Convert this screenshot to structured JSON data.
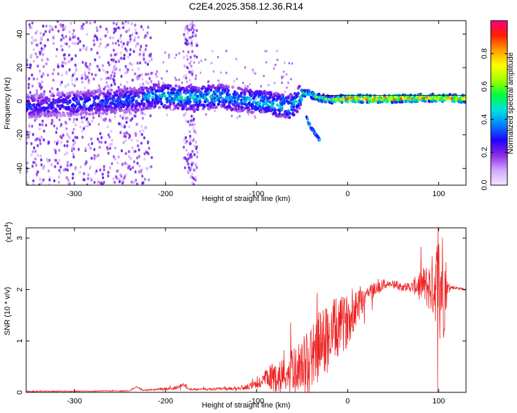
{
  "figure_title": "C2E4.2025.358.12.36.R14",
  "chart_data": [
    {
      "type": "heatmap",
      "title": "C2E4.2025.358.12.36.R14",
      "xlabel": "Height of straight line (km)",
      "ylabel": "Frequency (Hz)",
      "xlim": [
        -353,
        130
      ],
      "ylim": [
        -50,
        48
      ],
      "x_ticks": [
        -300,
        -200,
        -100,
        0,
        100
      ],
      "y_ticks": [
        -40,
        -20,
        0,
        20,
        40
      ],
      "x_tick_labels": [
        "-300",
        "-200",
        "-100",
        "0",
        "100"
      ],
      "y_tick_labels": [
        "-40",
        "-20",
        "0",
        "20",
        "40"
      ],
      "colorbar": {
        "label": "Normalized spectral amplitude",
        "range": [
          0,
          1
        ],
        "ticks": [
          0.0,
          0.2,
          0.4,
          0.6,
          0.8
        ],
        "tick_labels": [
          "0.0",
          "0.2",
          "0.4",
          "0.6",
          "0.8"
        ],
        "stops": [
          "#f2e6ff",
          "#d0a8ff",
          "#8a2be2",
          "#2200ff",
          "#0080ff",
          "#00e0e0",
          "#00ff40",
          "#a0ff00",
          "#ffff00",
          "#ffa000",
          "#ff2000",
          "#ff0080"
        ]
      },
      "ridge": {
        "x": [
          -350,
          -320,
          -290,
          -260,
          -230,
          -215,
          -200,
          -180,
          -160,
          -140,
          -120,
          -100,
          -80,
          -60,
          -50,
          -40,
          -30,
          -20,
          0,
          20,
          50,
          80,
          100,
          130
        ],
        "freq": [
          -3,
          -2,
          -1,
          0,
          1,
          3,
          3,
          2,
          2,
          3,
          1,
          0,
          -2,
          -3,
          5,
          4,
          2,
          1,
          1.5,
          1.5,
          1.5,
          2,
          2,
          1.5
        ],
        "amplitude": [
          0.3,
          0.3,
          0.35,
          0.35,
          0.35,
          0.4,
          0.45,
          0.45,
          0.45,
          0.45,
          0.4,
          0.45,
          0.45,
          0.45,
          0.5,
          0.55,
          0.6,
          0.65,
          0.85,
          0.9,
          0.9,
          0.85,
          0.85,
          0.8
        ]
      },
      "noise_bands_km": [
        [
          -353,
          -215
        ],
        [
          -180,
          -165
        ]
      ],
      "branch": {
        "x": [
          -45,
          -40,
          -35,
          -30
        ],
        "freq": [
          -10,
          -16,
          -20,
          -24
        ]
      }
    },
    {
      "type": "line",
      "xlabel": "Height of straight line (km)",
      "ylabel": "SNR (10 * v/v)",
      "y_multiplier": "(x10",
      "y_multiplier_exp": "4",
      "xlim": [
        -353,
        130
      ],
      "ylim": [
        0,
        3.2
      ],
      "x_ticks": [
        -300,
        -200,
        -100,
        0,
        100
      ],
      "y_ticks": [
        0,
        1,
        2,
        3
      ],
      "x_tick_labels": [
        "-300",
        "-200",
        "-100",
        "0",
        "100"
      ],
      "y_tick_labels": [
        "0",
        "1",
        "2",
        "3"
      ],
      "color": "#ee2222",
      "series": [
        {
          "name": "SNR",
          "x": [
            -353,
            -300,
            -240,
            -232,
            -225,
            -190,
            -180,
            -175,
            -160,
            -130,
            -110,
            -100,
            -90,
            -80,
            -70,
            -60,
            -50,
            -40,
            -30,
            -20,
            -10,
            0,
            10,
            20,
            30,
            40,
            50,
            60,
            70,
            80,
            90,
            95,
            100,
            105,
            108,
            110,
            120,
            130
          ],
          "values": [
            0.02,
            0.02,
            0.03,
            0.1,
            0.04,
            0.08,
            0.15,
            0.06,
            0.06,
            0.07,
            0.1,
            0.15,
            0.25,
            0.3,
            0.35,
            0.45,
            0.55,
            0.7,
            0.9,
            1.1,
            1.25,
            1.4,
            1.7,
            1.9,
            2.0,
            2.1,
            2.1,
            2.05,
            2.05,
            2.1,
            2.05,
            2.1,
            2.2,
            2.1,
            2.05,
            2.05,
            2.03,
            2.0
          ],
          "noise": [
            0.01,
            0.01,
            0.01,
            0.02,
            0.01,
            0.03,
            0.04,
            0.02,
            0.02,
            0.03,
            0.05,
            0.1,
            0.2,
            0.3,
            0.35,
            0.4,
            0.5,
            0.6,
            0.7,
            0.7,
            0.6,
            0.5,
            0.4,
            0.25,
            0.15,
            0.1,
            0.08,
            0.08,
            0.1,
            0.3,
            0.5,
            0.7,
            1.0,
            1.2,
            0.6,
            0.05,
            0.03,
            0.02
          ]
        }
      ]
    }
  ]
}
